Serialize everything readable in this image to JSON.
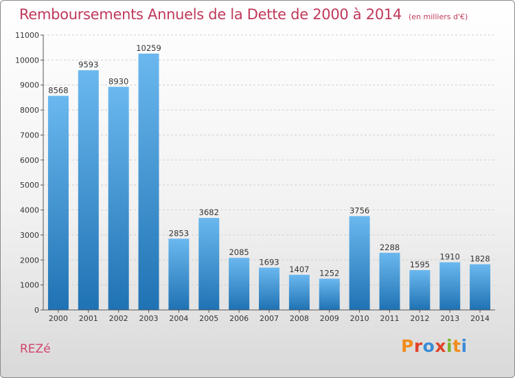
{
  "header": {
    "title": "Remboursements Annuels de la Dette de 2000 à 2014",
    "subtitle": "(en milliers d'€)"
  },
  "footer": {
    "city": "REZé",
    "logo_text": "Proxiti"
  },
  "colors": {
    "title": "#c0385a",
    "bar_top": "#6bb8ef",
    "bar_bottom": "#1f72b3",
    "logo": [
      "#f28c1e",
      "#e0442a",
      "#3a8bd6",
      "#e0442a",
      "#7ab32e",
      "#f28c1e",
      "#3a8bd6"
    ]
  },
  "chart_data": {
    "type": "bar",
    "title": "Remboursements Annuels de la Dette de 2000 à 2014",
    "subtitle": "(en milliers d'€)",
    "xlabel": "",
    "ylabel": "",
    "categories": [
      "2000",
      "2001",
      "2002",
      "2003",
      "2004",
      "2005",
      "2006",
      "2007",
      "2008",
      "2009",
      "2010",
      "2011",
      "2012",
      "2013",
      "2014"
    ],
    "values": [
      8568,
      9593,
      8930,
      10259,
      2853,
      3682,
      2085,
      1693,
      1407,
      1252,
      3756,
      2288,
      1595,
      1910,
      1828
    ],
    "ylim": [
      0,
      11000
    ],
    "yticks": [
      0,
      1000,
      2000,
      3000,
      4000,
      5000,
      6000,
      7000,
      8000,
      9000,
      10000,
      11000
    ],
    "grid": true,
    "legend": "none"
  }
}
